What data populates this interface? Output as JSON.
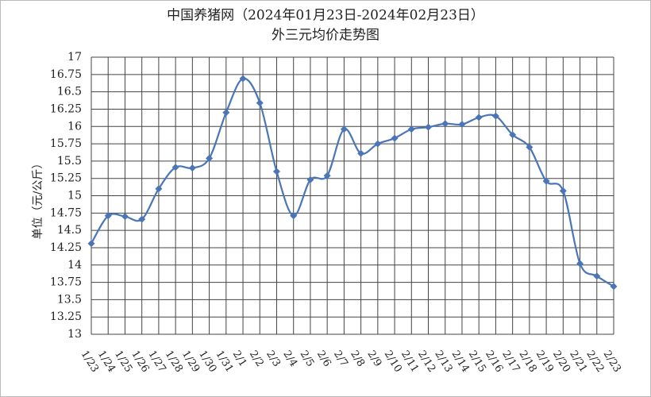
{
  "chart_data": {
    "type": "line",
    "title": "中国养猪网（2024年01月23日-2024年02月23日）",
    "subtitle": "外三元均价走势图",
    "y_label": "单位（元/公斤）",
    "categories": [
      "1/23",
      "1/24",
      "1/25",
      "1/26",
      "1/27",
      "1/28",
      "1/29",
      "1/30",
      "1/31",
      "2/1",
      "2/2",
      "2/3",
      "2/4",
      "2/5",
      "2/6",
      "2/7",
      "2/8",
      "2/9",
      "2/10",
      "2/11",
      "2/12",
      "2/13",
      "2/14",
      "2/15",
      "2/16",
      "2/17",
      "2/18",
      "2/19",
      "2/20",
      "2/21",
      "2/22",
      "2/23"
    ],
    "values": [
      14.31,
      14.71,
      14.7,
      14.66,
      15.1,
      15.41,
      15.4,
      15.54,
      16.2,
      16.69,
      16.34,
      15.35,
      14.71,
      15.23,
      15.29,
      15.96,
      15.61,
      15.75,
      15.83,
      15.96,
      15.99,
      16.04,
      16.03,
      16.13,
      16.15,
      15.88,
      15.7,
      15.21,
      15.07,
      14.02,
      13.84,
      13.69
    ],
    "color": "#4a76b8",
    "ylim": [
      13,
      17
    ],
    "yticks": [
      13,
      13.25,
      13.5,
      13.75,
      14,
      14.25,
      14.5,
      14.75,
      15,
      15.25,
      15.5,
      15.75,
      16,
      16.25,
      16.5,
      16.75,
      17
    ],
    "grid": true
  }
}
